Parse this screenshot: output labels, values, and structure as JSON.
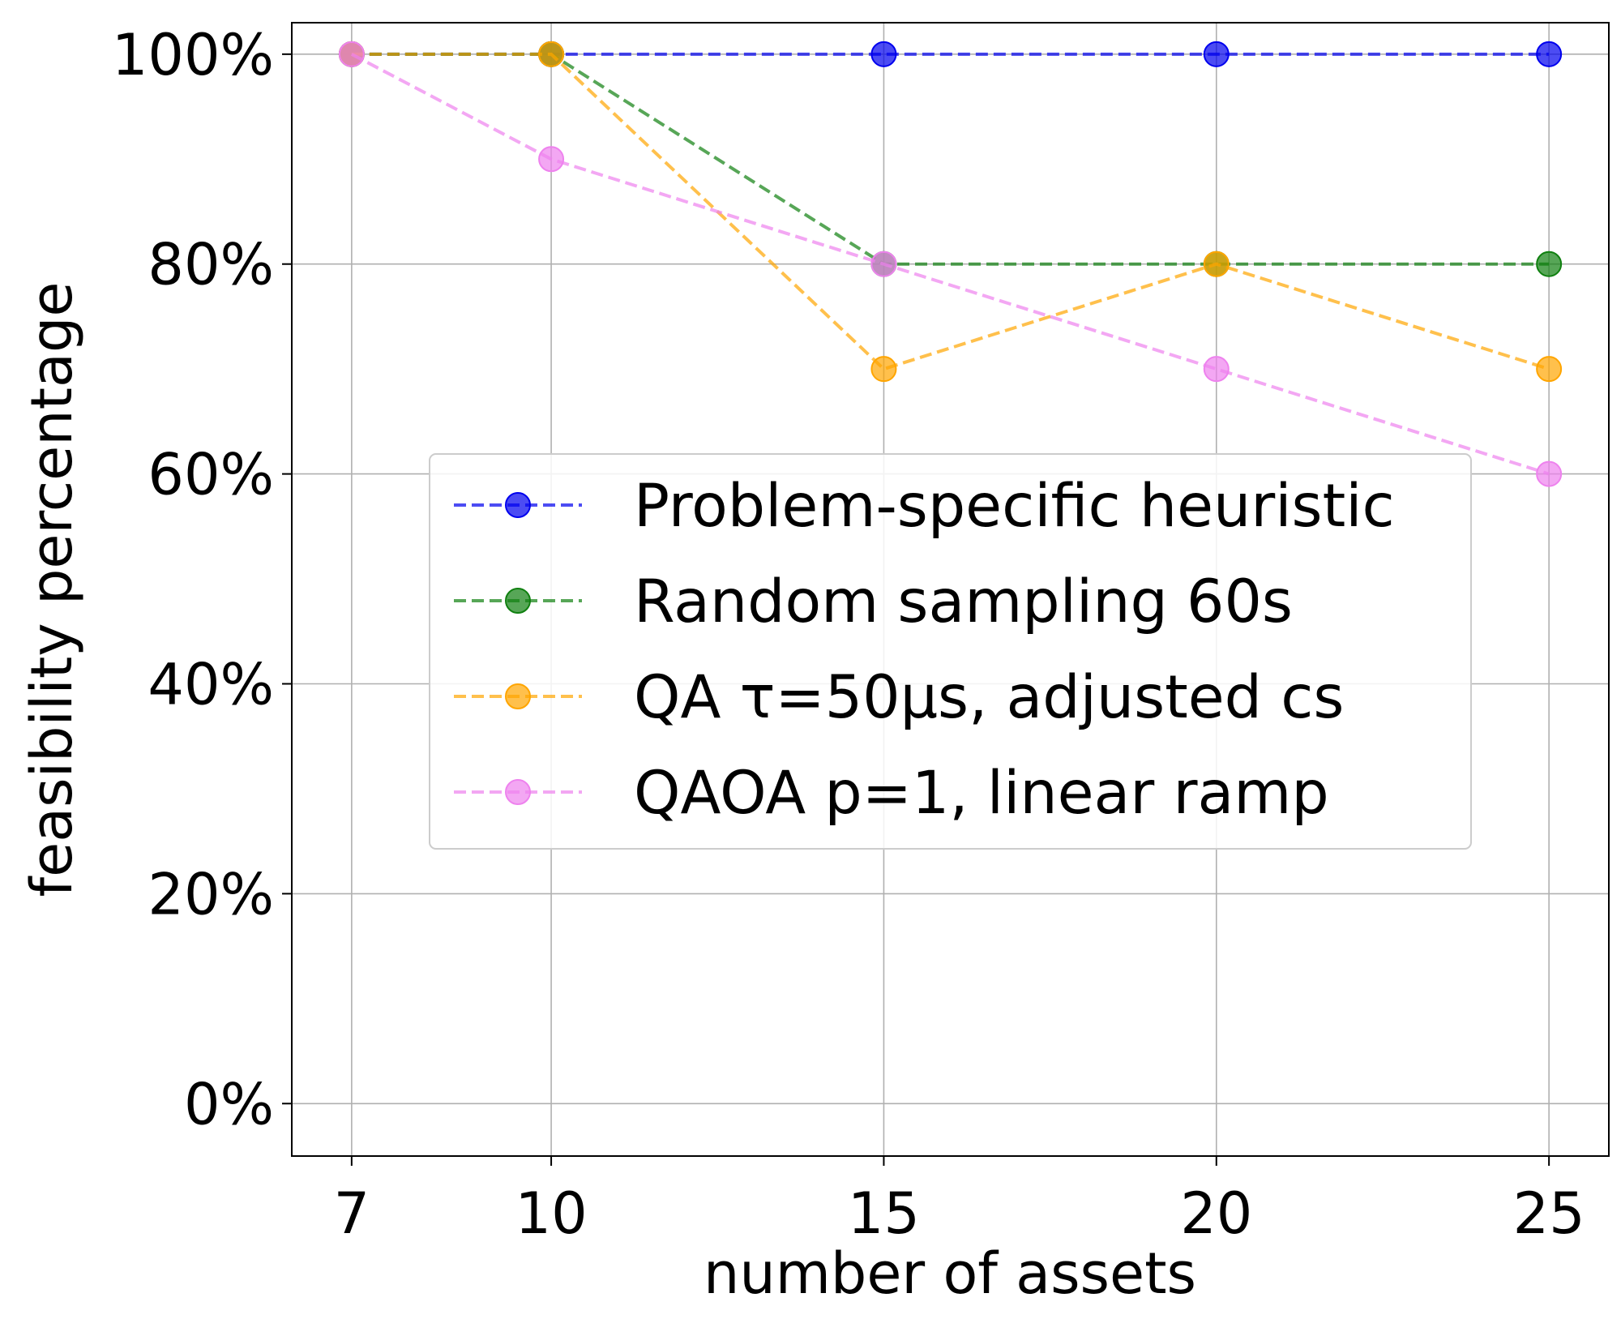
{
  "chart_data": {
    "type": "line",
    "xlabel": "number of assets",
    "ylabel": "feasibility percentage",
    "x": [
      7,
      10,
      15,
      20,
      25
    ],
    "xticks": [
      "7",
      "10",
      "15",
      "20",
      "25"
    ],
    "yticks": [
      "0%",
      "20%",
      "40%",
      "60%",
      "80%",
      "100%"
    ],
    "ytick_values": [
      0,
      20,
      40,
      60,
      80,
      100
    ],
    "xlim": [
      6.1,
      25.9
    ],
    "ylim": [
      -5,
      103
    ],
    "grid": true,
    "legend_position": "center-right",
    "series": [
      {
        "name": "Problem-specific heuristic",
        "color": "#0000ee",
        "values": [
          100,
          100,
          100,
          100,
          100
        ]
      },
      {
        "name": "Random sampling 60s",
        "color": "#108010",
        "values": [
          100,
          100,
          80,
          80,
          80
        ]
      },
      {
        "name": "QA τ=50μs, adjusted cs",
        "color": "#ffa500",
        "values": [
          100,
          100,
          70,
          80,
          70
        ]
      },
      {
        "name": "QAOA p=1, linear ramp",
        "color": "#ee82ee",
        "values": [
          100,
          90,
          80,
          70,
          60
        ]
      }
    ]
  }
}
